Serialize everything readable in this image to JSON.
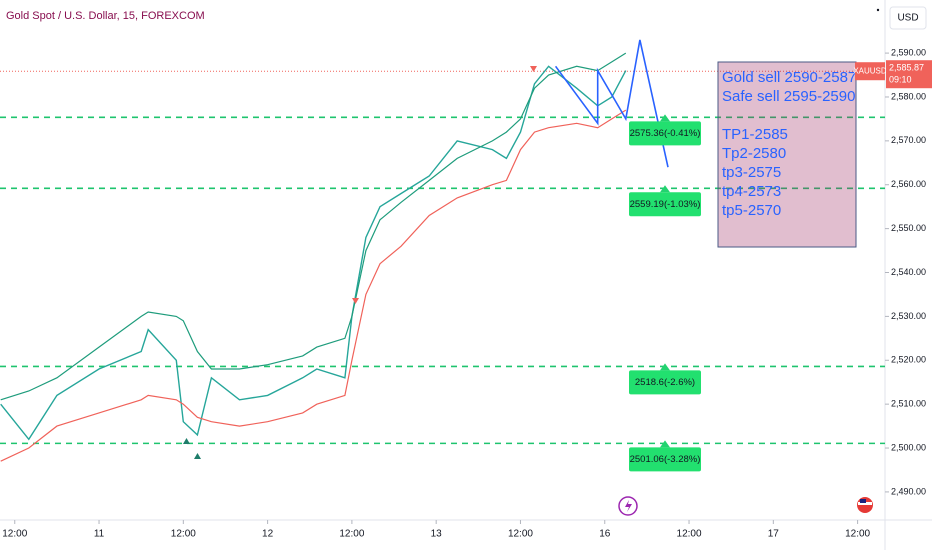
{
  "chart_data": {
    "type": "line",
    "title": "Gold Spot / U.S. Dollar, 15, FOREXCOM",
    "currency": "USD",
    "symbol": "XAUUSD",
    "last_price": {
      "value": 2585.87,
      "label": "2,585.87"
    },
    "countdown": "09:10",
    "x": [
      -2,
      2,
      6,
      12,
      18,
      19,
      23,
      24,
      26,
      28,
      32,
      36,
      41,
      43,
      47,
      48,
      50,
      52,
      55,
      59,
      63,
      68,
      70,
      72,
      74,
      76,
      80,
      83,
      85,
      87
    ],
    "series": [
      {
        "color": "#26a69a",
        "values": [
          2510,
          2502,
          2512,
          2518,
          2522,
          2527,
          2520,
          2506,
          2503,
          2516,
          2511,
          2512,
          2516,
          2518,
          2516,
          2530,
          2548,
          2555,
          2558,
          2562,
          2570,
          2568,
          2566,
          2572,
          2583,
          2587,
          2582,
          2578,
          2580,
          2586
        ]
      },
      {
        "color": "#1e9c7c",
        "values": [
          2511,
          2513,
          2516,
          2523,
          2530,
          2531,
          2530,
          2529,
          2522,
          2518,
          2518,
          2519,
          2521,
          2523,
          2525,
          2530,
          2545,
          2552,
          2556,
          2561,
          2566,
          2570,
          2572,
          2575,
          2582,
          2585,
          2587,
          2586,
          2588,
          2590
        ]
      },
      {
        "color": "#f0625a",
        "values": [
          2497,
          2500,
          2505,
          2508,
          2511,
          2512,
          2511,
          2510,
          2507,
          2506,
          2505,
          2506,
          2508,
          2510,
          2512,
          2520,
          2535,
          2542,
          2546,
          2553,
          2557,
          2560,
          2561,
          2568,
          2572,
          2573,
          2574,
          2573,
          2575,
          2577
        ]
      }
    ],
    "levels": [
      {
        "value": 2575.36,
        "label": "2575.36(-0.41%)"
      },
      {
        "value": 2559.19,
        "label": "2559.19(-1.03%)"
      },
      {
        "value": 2518.6,
        "label": "2518.6(-2.6%)"
      },
      {
        "value": 2501.06,
        "label": "2501.06(-3.28%)"
      }
    ],
    "projection": {
      "color": "#2962ff",
      "x": [
        77,
        83,
        83,
        87,
        89,
        93
      ],
      "y": [
        2587,
        2574,
        2586,
        2575,
        2593,
        2564
      ]
    },
    "note_lines": [
      "Gold sell 2590-2587",
      "Safe sell 2595-2590",
      "TP1-2585",
      "Tp2-2580",
      "tp3-2575",
      "tp4-2573",
      "tp5-2570"
    ],
    "xlim": [
      -2.1,
      123.9
    ],
    "ylim": [
      2483.6,
      2602.1
    ],
    "xticks": [
      {
        "value": 0,
        "label": "12:00"
      },
      {
        "value": 12,
        "label": "11"
      },
      {
        "value": 24,
        "label": "12:00"
      },
      {
        "value": 36,
        "label": "12"
      },
      {
        "value": 48,
        "label": "12:00"
      },
      {
        "value": 60,
        "label": "13"
      },
      {
        "value": 72,
        "label": "12:00"
      },
      {
        "value": 84,
        "label": "16"
      },
      {
        "value": 96,
        "label": "12:00"
      },
      {
        "value": 108,
        "label": "17"
      },
      {
        "value": 120,
        "label": "12:00"
      }
    ],
    "yticks": [
      {
        "value": 2490,
        "label": "2,490.00"
      },
      {
        "value": 2500,
        "label": "2,500.00"
      },
      {
        "value": 2510,
        "label": "2,510.00"
      },
      {
        "value": 2520,
        "label": "2,520.00"
      },
      {
        "value": 2530,
        "label": "2,530.00"
      },
      {
        "value": 2540,
        "label": "2,540.00"
      },
      {
        "value": 2550,
        "label": "2,550.00"
      },
      {
        "value": 2560,
        "label": "2,560.00"
      },
      {
        "value": 2570,
        "label": "2,570.00"
      },
      {
        "value": 2580,
        "label": "2,580.00"
      },
      {
        "value": 2590,
        "label": "2,590.00"
      }
    ]
  }
}
